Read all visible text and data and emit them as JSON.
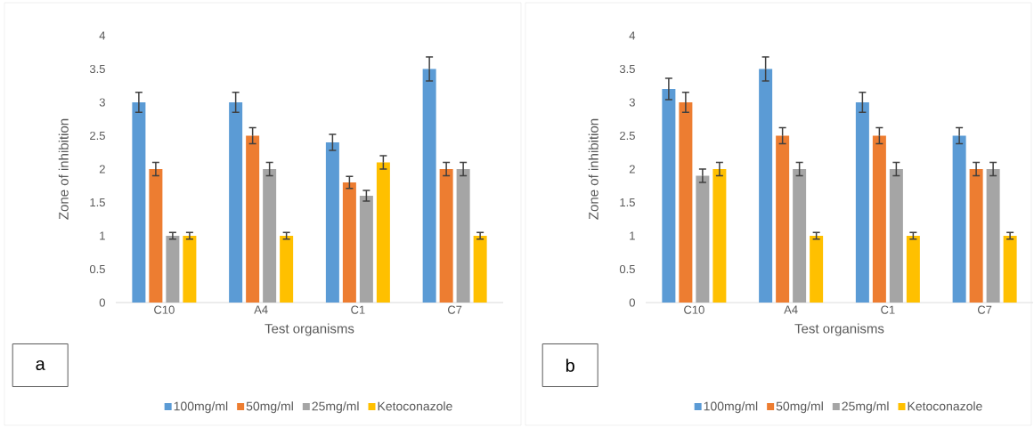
{
  "chart_data": [
    {
      "type": "bar",
      "xlabel": "Test organisms",
      "ylabel": "Zone of inhibition",
      "categories": [
        "C10",
        "A4",
        "C1",
        "C7"
      ],
      "ylim": [
        0,
        4
      ],
      "yticks": [
        0,
        0.5,
        1,
        1.5,
        2,
        2.5,
        3,
        3.5,
        4
      ],
      "legend": "bottom",
      "annotations": [
        "a"
      ],
      "series": [
        {
          "name": "100mg/ml",
          "color": "#5b9bd5",
          "values": [
            3,
            3,
            2.4,
            3.5
          ],
          "errors": [
            0.15,
            0.15,
            0.12,
            0.18
          ]
        },
        {
          "name": "50mg/ml",
          "color": "#ed7d31",
          "values": [
            2,
            2.5,
            1.8,
            2
          ],
          "errors": [
            0.1,
            0.12,
            0.09,
            0.1
          ]
        },
        {
          "name": "25mg/ml",
          "color": "#a5a5a5",
          "values": [
            1,
            2,
            1.6,
            2
          ],
          "errors": [
            0.05,
            0.1,
            0.08,
            0.1
          ]
        },
        {
          "name": "Ketoconazole",
          "color": "#ffc000",
          "values": [
            1,
            1,
            2.1,
            1
          ],
          "errors": [
            0.05,
            0.05,
            0.1,
            0.05
          ]
        }
      ]
    },
    {
      "type": "bar",
      "xlabel": "Test organisms",
      "ylabel": "Zone of inhibition",
      "categories": [
        "C10",
        "A4",
        "C1",
        "C7"
      ],
      "ylim": [
        0,
        4
      ],
      "yticks": [
        0,
        0.5,
        1,
        1.5,
        2,
        2.5,
        3,
        3.5,
        4
      ],
      "legend": "bottom",
      "annotations": [
        "b"
      ],
      "series": [
        {
          "name": "100mg/ml",
          "color": "#5b9bd5",
          "values": [
            3.2,
            3.5,
            3,
            2.5
          ],
          "errors": [
            0.16,
            0.18,
            0.15,
            0.12
          ]
        },
        {
          "name": "50mg/ml",
          "color": "#ed7d31",
          "values": [
            3,
            2.5,
            2.5,
            2
          ],
          "errors": [
            0.15,
            0.12,
            0.12,
            0.1
          ]
        },
        {
          "name": "25mg/ml",
          "color": "#a5a5a5",
          "values": [
            1.9,
            2,
            2,
            2
          ],
          "errors": [
            0.1,
            0.1,
            0.1,
            0.1
          ]
        },
        {
          "name": "Ketoconazole",
          "color": "#ffc000",
          "values": [
            2,
            1,
            1,
            1
          ],
          "errors": [
            0.1,
            0.05,
            0.05,
            0.05
          ]
        }
      ]
    }
  ]
}
